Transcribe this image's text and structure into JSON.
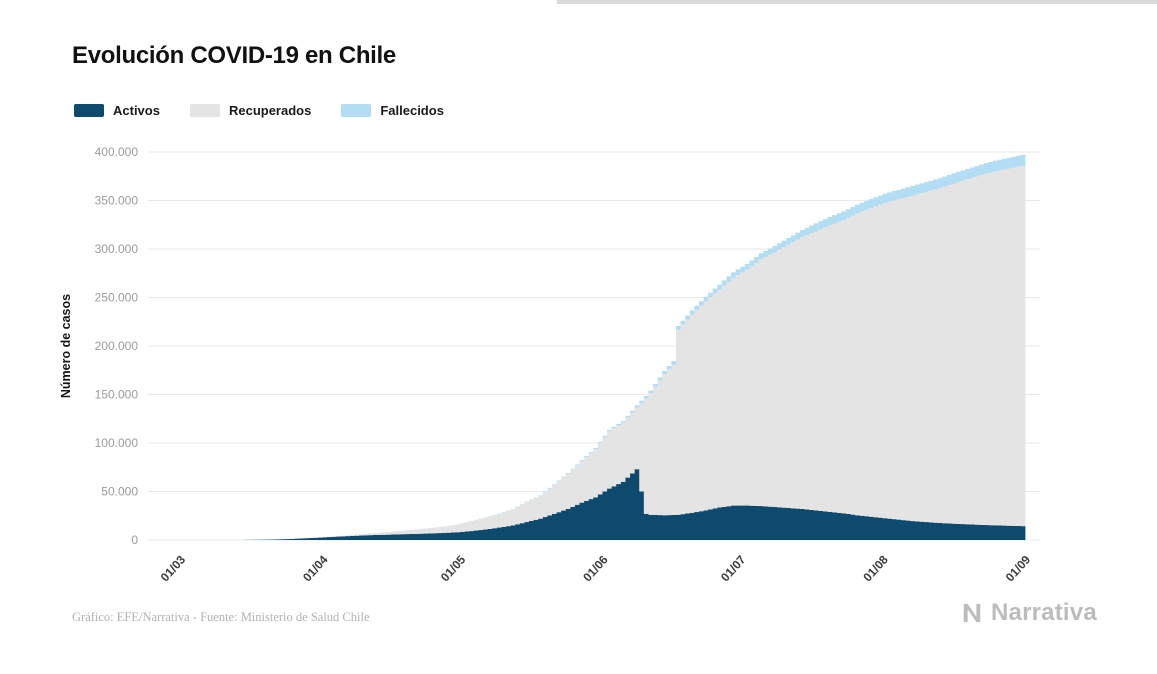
{
  "page": {
    "title": "Evolución COVID-19 en Chile",
    "footer": "Gráfico: EFE/Narrativa - Fuente: Ministerio de Salud Chile",
    "brand": "Narrativa",
    "background": "#ffffff"
  },
  "legend": {
    "items": [
      {
        "label": "Activos",
        "color": "#0e4a6e"
      },
      {
        "label": "Recuperados",
        "color": "#e4e4e4"
      },
      {
        "label": "Fallecidos",
        "color": "#b3ddf2"
      }
    ]
  },
  "chart_data": {
    "type": "bar",
    "stacked": true,
    "title": "Evolución COVID-19 en Chile",
    "xlabel": "",
    "ylabel": "Número de casos",
    "ylim": [
      0,
      400000
    ],
    "yticks": [
      0,
      50000,
      100000,
      150000,
      200000,
      250000,
      300000,
      350000,
      400000
    ],
    "ytick_labels": [
      "0",
      "50.000",
      "100.000",
      "150.000",
      "200.000",
      "250.000",
      "300.000",
      "350.000",
      "400.000"
    ],
    "xtick_days": [
      0,
      31,
      61,
      92,
      122,
      153,
      184
    ],
    "xtick_labels": [
      "01/03",
      "01/04",
      "01/05",
      "01/06",
      "01/07",
      "01/08",
      "01/09"
    ],
    "x_unit": "days since 01/03/2020, daily stacked bars",
    "grid": true,
    "legend_position": "top-left",
    "x_days": [
      0,
      3,
      6,
      9,
      12,
      15,
      18,
      21,
      24,
      27,
      30,
      33,
      36,
      39,
      42,
      45,
      48,
      51,
      54,
      57,
      60,
      63,
      66,
      69,
      72,
      75,
      78,
      81,
      84,
      87,
      90,
      93,
      96,
      99,
      101,
      102,
      105,
      107,
      108,
      111,
      114,
      117,
      120,
      123,
      126,
      129,
      132,
      135,
      138,
      141,
      144,
      147,
      150,
      153,
      156,
      159,
      162,
      165,
      168,
      171,
      174,
      177,
      180,
      183
    ],
    "series": [
      {
        "name": "Activos",
        "color": "#0e4a6e",
        "values": [
          0,
          5,
          10,
          17,
          43,
          155,
          338,
          620,
          1100,
          1820,
          2500,
          3300,
          4000,
          4600,
          5200,
          5500,
          6000,
          6300,
          6800,
          7300,
          8000,
          9200,
          10800,
          12800,
          15000,
          18500,
          22000,
          27000,
          32000,
          38500,
          44000,
          53000,
          60000,
          73000,
          27000,
          26000,
          25500,
          25800,
          26000,
          28000,
          30500,
          33500,
          35500,
          35500,
          35000,
          34000,
          33000,
          32000,
          30500,
          29000,
          27500,
          25500,
          24000,
          22500,
          21000,
          19500,
          18500,
          17500,
          16800,
          16200,
          15600,
          15100,
          14700,
          14300
        ]
      },
      {
        "name": "Recuperados",
        "color": "#e4e4e4",
        "values": [
          0,
          0,
          0,
          0,
          0,
          1,
          4,
          11,
          39,
          83,
          226,
          415,
          778,
          1315,
          1933,
          2679,
          3604,
          4385,
          5332,
          6315,
          7796,
          10203,
          11967,
          14115,
          16386,
          20648,
          23581,
          29992,
          36384,
          42948,
          49861,
          59353,
          61051,
          63582,
          119000,
          125444,
          145470,
          155149,
          191013,
          204453,
          215536,
          224792,
          234924,
          243121,
          254224,
          262510,
          271441,
          280424,
          287592,
          295352,
          302421,
          311178,
          318297,
          324892,
          330255,
          335489,
          340361,
          345295,
          350748,
          355722,
          360608,
          364942,
          368228,
          371456
        ]
      },
      {
        "name": "Fallecidos",
        "color": "#b3ddf2",
        "values": [
          0,
          0,
          0,
          0,
          0,
          0,
          0,
          1,
          3,
          6,
          12,
          22,
          37,
          57,
          80,
          94,
          126,
          147,
          174,
          198,
          227,
          260,
          281,
          304,
          335,
          394,
          478,
          589,
          718,
          841,
          997,
          1275,
          1448,
          2264,
          2500,
          2648,
          3323,
          3500,
          3615,
          4295,
          4731,
          5068,
          5575,
          5920,
          6308,
          6573,
          6884,
          7069,
          8347,
          8677,
          8838,
          9112,
          9278,
          9608,
          9745,
          10011,
          10139,
          10205,
          10452,
          10578,
          10792,
          10958,
          11072,
          11244
        ]
      }
    ]
  }
}
